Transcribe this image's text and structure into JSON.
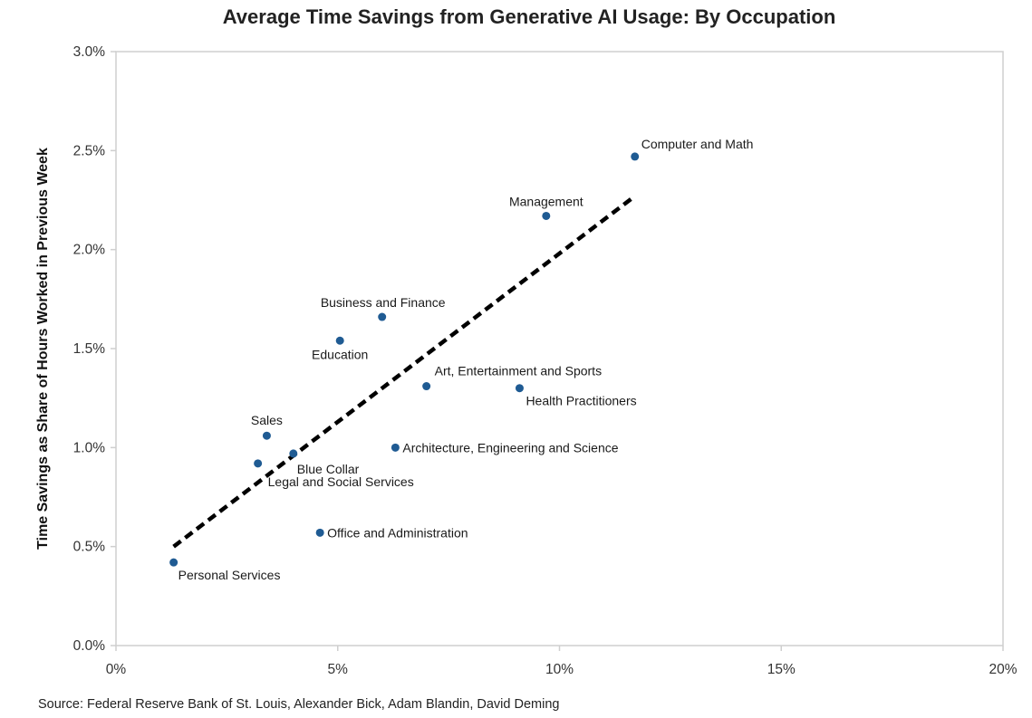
{
  "chart_data": {
    "type": "scatter",
    "title": "Average Time Savings from Generative AI Usage: By Occupation",
    "xlabel": "",
    "ylabel": "Time Savings as Share of Hours Worked in Previous Week",
    "xlim": [
      0,
      20
    ],
    "ylim": [
      0,
      3
    ],
    "x_ticks": [
      0,
      5,
      10,
      15,
      20
    ],
    "x_tick_labels": [
      "0%",
      "5%",
      "10%",
      "15%",
      "20%"
    ],
    "y_ticks": [
      0,
      0.5,
      1.0,
      1.5,
      2.0,
      2.5,
      3.0
    ],
    "y_tick_labels": [
      "0.0%",
      "0.5%",
      "1.0%",
      "1.5%",
      "2.0%",
      "2.5%",
      "3.0%"
    ],
    "grid": false,
    "points": [
      {
        "label": "Computer and Math",
        "x": 11.7,
        "y": 2.47
      },
      {
        "label": "Management",
        "x": 9.7,
        "y": 2.17
      },
      {
        "label": "Business and Finance",
        "x": 6.0,
        "y": 1.66
      },
      {
        "label": "Education",
        "x": 5.05,
        "y": 1.54
      },
      {
        "label": "Art, Entertainment and Sports",
        "x": 7.0,
        "y": 1.31
      },
      {
        "label": "Health Practitioners",
        "x": 9.1,
        "y": 1.3
      },
      {
        "label": "Sales",
        "x": 3.4,
        "y": 1.06
      },
      {
        "label": "Architecture, Engineering and Science",
        "x": 6.3,
        "y": 1.0
      },
      {
        "label": "Blue Collar",
        "x": 4.0,
        "y": 0.97
      },
      {
        "label": "Legal and Social Services",
        "x": 3.2,
        "y": 0.92
      },
      {
        "label": "Office and Administration",
        "x": 4.6,
        "y": 0.57
      },
      {
        "label": "Personal Services",
        "x": 1.3,
        "y": 0.42
      }
    ],
    "trendline": {
      "x": [
        1.3,
        11.7
      ],
      "y": [
        0.5,
        2.27
      ],
      "style": "dashed"
    },
    "source": "Source: Federal Reserve Bank of St. Louis, Alexander Bick, Adam Blandin, David Deming"
  },
  "colors": {
    "point": "#1f5b93",
    "trendline": "#000000",
    "frame": "#cfcfcf"
  }
}
